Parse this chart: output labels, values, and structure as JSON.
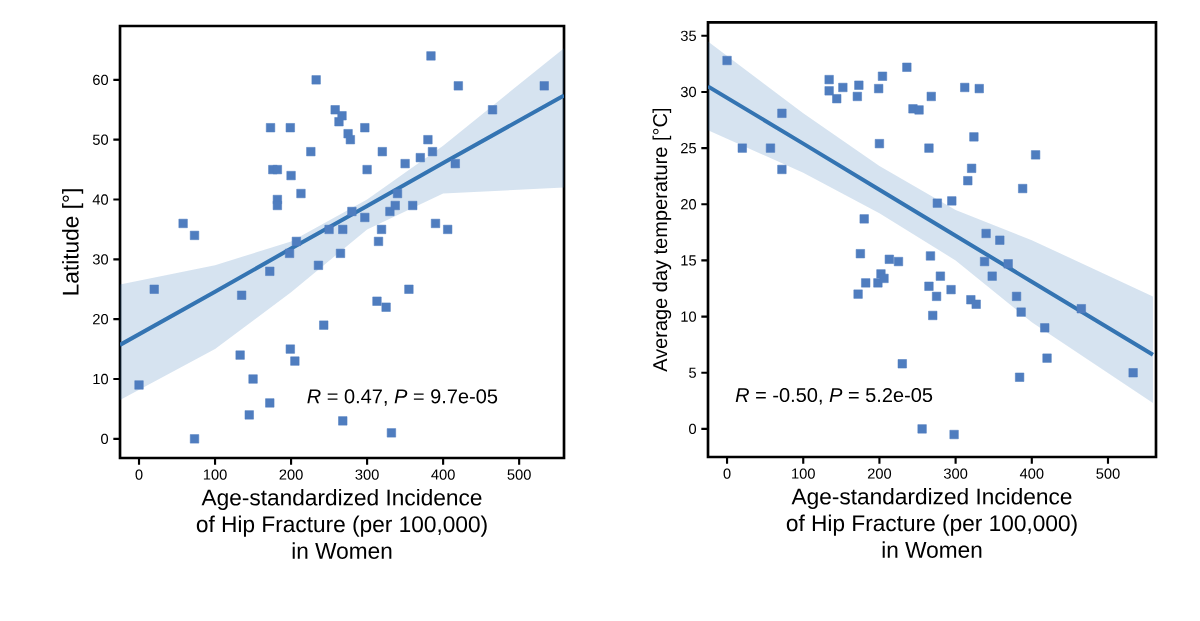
{
  "chart_data": [
    {
      "type": "scatter",
      "xlabel": "Age-standardized Incidence\nof Hip Fracture (per 100,000)\nin Women",
      "ylabel": "Latitude [°]",
      "xlim": [
        -25,
        559
      ],
      "ylim": [
        -3.2,
        69
      ],
      "xticks": [
        0,
        100,
        200,
        300,
        400,
        500
      ],
      "yticks": [
        0,
        10,
        20,
        30,
        40,
        50,
        60
      ],
      "annotations": [
        "*R* = 0.47, *P* = 9.7e-05"
      ],
      "series": [
        {
          "marker": "square",
          "color": "#4f7dbf",
          "x": [
            0,
            20,
            58,
            73,
            73,
            133,
            135,
            145,
            150,
            172,
            172,
            173,
            176,
            182,
            182,
            182,
            198,
            199,
            199,
            200,
            205,
            207,
            213,
            226,
            233,
            236,
            243,
            250,
            258,
            263,
            265,
            267,
            268,
            268,
            275,
            278,
            280,
            297,
            297,
            300,
            313,
            315,
            319,
            320,
            325,
            330,
            332,
            337,
            340,
            350,
            355,
            360,
            370,
            380,
            384,
            386,
            390,
            406,
            416,
            420,
            465,
            533
          ],
          "values": [
            9,
            25,
            36,
            34,
            0,
            14,
            24,
            4,
            10,
            6,
            28,
            52,
            45,
            45,
            40,
            39,
            31,
            15,
            52,
            44,
            13,
            33,
            41,
            48,
            60,
            29,
            19,
            35,
            55,
            53,
            31,
            54,
            3,
            35,
            51,
            50,
            38,
            52,
            37,
            45,
            23,
            33,
            35,
            48,
            22,
            38,
            1,
            39,
            41,
            46,
            25,
            39,
            47,
            50,
            64,
            48,
            36,
            35,
            46,
            59,
            55,
            59
          ]
        },
        {
          "type": "line",
          "color": "#3474b2",
          "x": [
            -25,
            100,
            200,
            300,
            400,
            559
          ],
          "values": [
            15.7,
            24.6,
            31.8,
            38.9,
            46.1,
            57.4
          ],
          "lower": [
            6.5,
            15,
            24.5,
            35,
            41,
            42
          ],
          "upper": [
            25.8,
            29,
            33,
            40,
            49,
            65.3
          ]
        }
      ]
    },
    {
      "type": "scatter",
      "xlabel": "Age-standardized Incidence\nof Hip Fracture (per 100,000)\nin Women",
      "ylabel": "Average day temperature [°C]",
      "xlim": [
        -25,
        563
      ],
      "ylim": [
        -2.5,
        36.2
      ],
      "xticks": [
        0,
        100,
        200,
        300,
        400,
        500
      ],
      "yticks": [
        0,
        5,
        10,
        15,
        20,
        25,
        30,
        35
      ],
      "annotations": [
        "*R* = -0.50, *P* = 5.2e-05"
      ],
      "series": [
        {
          "marker": "square",
          "color": "#4f7dbf",
          "x": [
            0,
            20,
            57,
            72,
            72,
            134,
            134,
            144,
            152,
            171,
            173,
            172,
            175,
            180,
            182,
            198,
            199,
            200,
            202,
            204,
            206,
            213,
            225,
            230,
            236,
            244,
            252,
            256,
            265,
            265,
            267,
            268,
            270,
            275,
            276,
            280,
            294,
            295,
            298,
            312,
            316,
            320,
            321,
            324,
            327,
            331,
            338,
            340,
            348,
            358,
            369,
            380,
            384,
            386,
            388,
            405,
            417,
            420,
            465,
            533
          ],
          "values": [
            32.8,
            25,
            25,
            28.1,
            23.1,
            31.1,
            30.1,
            29.4,
            30.4,
            29.6,
            30.6,
            12,
            15.6,
            18.7,
            13,
            13,
            30.3,
            25.4,
            13.8,
            31.4,
            13.4,
            15.1,
            14.9,
            5.8,
            32.2,
            28.5,
            28.4,
            0,
            25,
            12.7,
            15.4,
            29.6,
            10.1,
            11.8,
            20.1,
            13.6,
            12.4,
            20.3,
            -0.5,
            30.4,
            22.1,
            11.5,
            23.2,
            26,
            11.1,
            30.3,
            14.9,
            17.4,
            13.6,
            16.8,
            14.7,
            11.8,
            4.6,
            10.4,
            21.4,
            24.4,
            9,
            6.3,
            10.7,
            5
          ]
        },
        {
          "type": "line",
          "color": "#3474b2",
          "x": [
            -25,
            100,
            200,
            300,
            400,
            559
          ],
          "values": [
            30.5,
            25.4,
            21.3,
            17.2,
            13.1,
            6.6
          ],
          "lower": [
            26.6,
            22.8,
            19.2,
            15.0,
            9.5,
            2.3
          ],
          "upper": [
            34.5,
            28.1,
            23.4,
            19.5,
            16.8,
            11.8
          ]
        }
      ]
    }
  ]
}
